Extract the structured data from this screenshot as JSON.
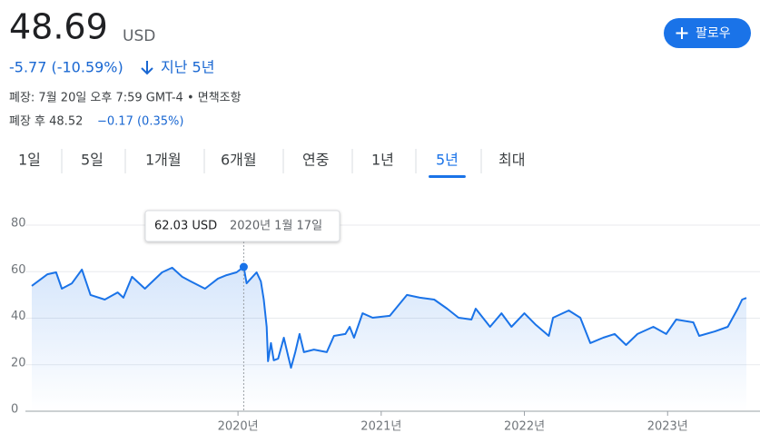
{
  "header": {
    "price": "48.69",
    "currency": "USD",
    "change": "-5.77 (-10.59%)",
    "period": "지난 5년",
    "closed": "폐장: 7월 20일 오후 7:59 GMT-4 • 면책조항",
    "after_hours_label": "폐장 후 48.52",
    "after_hours_change": "−0.17 (0.35%)",
    "follow": "팔로우"
  },
  "tabs": {
    "items": [
      "1일",
      "5일",
      "1개월",
      "6개월",
      "연중",
      "1년",
      "5년",
      "최대"
    ],
    "selected": "5년"
  },
  "chart_data": {
    "type": "line",
    "color": "#1a73e8",
    "x": [
      2018.56,
      2018.67,
      2018.73,
      2018.77,
      2018.84,
      2018.91,
      2018.97,
      2019.07,
      2019.16,
      2019.2,
      2019.26,
      2019.35,
      2019.47,
      2019.54,
      2019.61,
      2019.67,
      2019.77,
      2019.86,
      2019.92,
      2019.99,
      2020.04,
      2020.06,
      2020.13,
      2020.16,
      2020.18,
      2020.2,
      2020.21,
      2020.23,
      2020.25,
      2020.28,
      2020.32,
      2020.35,
      2020.37,
      2020.4,
      2020.43,
      2020.46,
      2020.53,
      2020.62,
      2020.67,
      2020.75,
      2020.78,
      2020.81,
      2020.87,
      2020.94,
      2021.06,
      2021.18,
      2021.27,
      2021.37,
      2021.46,
      2021.54,
      2021.63,
      2021.66,
      2021.76,
      2021.84,
      2021.91,
      2022.0,
      2022.08,
      2022.17,
      2022.2,
      2022.31,
      2022.39,
      2022.46,
      2022.55,
      2022.63,
      2022.71,
      2022.79,
      2022.9,
      2022.99,
      2023.06,
      2023.18,
      2023.22,
      2023.33,
      2023.42,
      2023.49,
      2023.52,
      2023.55
    ],
    "values": [
      53.9,
      58.9,
      59.7,
      52.7,
      55.0,
      60.9,
      50.0,
      48.0,
      51.1,
      48.8,
      57.8,
      52.7,
      59.7,
      61.7,
      57.8,
      55.8,
      52.7,
      57.0,
      58.5,
      59.7,
      62.03,
      55.0,
      59.7,
      55.8,
      48.0,
      36.3,
      21.5,
      29.3,
      21.9,
      22.6,
      31.6,
      23.8,
      18.7,
      25.4,
      33.2,
      25.4,
      26.5,
      25.4,
      32.4,
      33.2,
      36.3,
      31.6,
      42.1,
      40.2,
      41.0,
      50.0,
      48.8,
      48.0,
      44.1,
      40.2,
      39.4,
      44.1,
      36.3,
      42.1,
      36.3,
      42.1,
      37.1,
      32.4,
      40.2,
      43.3,
      40.2,
      29.3,
      31.6,
      33.2,
      28.5,
      33.2,
      36.3,
      33.2,
      39.4,
      38.2,
      32.4,
      34.3,
      36.3,
      44.1,
      48.0,
      48.69
    ],
    "xlim": [
      2018.56,
      2023.55
    ],
    "xticks": [
      {
        "value": 2020,
        "label": "2020년"
      },
      {
        "value": 2021,
        "label": "2021년"
      },
      {
        "value": 2022,
        "label": "2022년"
      },
      {
        "value": 2023,
        "label": "2023년"
      }
    ],
    "ylim": [
      0,
      80
    ],
    "yticks": [
      0,
      20,
      40,
      60,
      80
    ],
    "grid": true,
    "tooltip": {
      "x": 2020.04,
      "value": 62.03,
      "label": "62.03 USD",
      "date": "2020년 1월 17일"
    }
  }
}
